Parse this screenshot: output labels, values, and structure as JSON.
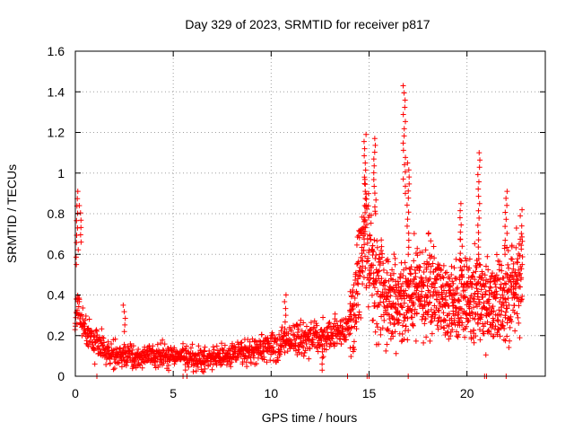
{
  "chart_data": {
    "type": "scatter",
    "title": "Day 329 of 2023, SRMTID for receiver p817",
    "xlabel": "GPS time / hours",
    "ylabel": "SRMTID / TECUs",
    "xlim": [
      0,
      24
    ],
    "ylim": [
      0,
      1.6
    ],
    "xticks": [
      0,
      5,
      10,
      15,
      20
    ],
    "yticks": [
      0,
      0.2,
      0.4,
      0.6,
      0.8,
      1,
      1.2,
      1.4,
      1.6
    ],
    "grid": true,
    "marker": "plus",
    "color": "#ff0000",
    "series": [
      {
        "name": "SRMTID",
        "trend": [
          [
            0.0,
            0.25
          ],
          [
            0.1,
            0.34
          ],
          [
            0.2,
            0.31
          ],
          [
            0.4,
            0.28
          ],
          [
            0.6,
            0.22
          ],
          [
            0.8,
            0.19
          ],
          [
            1.0,
            0.16
          ],
          [
            1.3,
            0.14
          ],
          [
            1.6,
            0.12
          ],
          [
            2.0,
            0.1
          ],
          [
            2.5,
            0.1
          ],
          [
            3.0,
            0.1
          ],
          [
            3.5,
            0.1
          ],
          [
            4.0,
            0.1
          ],
          [
            4.5,
            0.1
          ],
          [
            5.0,
            0.1
          ],
          [
            5.5,
            0.1
          ],
          [
            6.0,
            0.09
          ],
          [
            6.5,
            0.09
          ],
          [
            7.0,
            0.09
          ],
          [
            7.5,
            0.1
          ],
          [
            8.0,
            0.11
          ],
          [
            8.5,
            0.12
          ],
          [
            9.0,
            0.13
          ],
          [
            9.5,
            0.14
          ],
          [
            10.0,
            0.15
          ],
          [
            10.5,
            0.16
          ],
          [
            11.0,
            0.17
          ],
          [
            11.5,
            0.18
          ],
          [
            12.0,
            0.19
          ],
          [
            12.5,
            0.19
          ],
          [
            13.0,
            0.2
          ],
          [
            13.5,
            0.21
          ],
          [
            14.0,
            0.23
          ],
          [
            14.3,
            0.35
          ],
          [
            14.6,
            0.55
          ],
          [
            14.9,
            0.7
          ],
          [
            15.2,
            0.5
          ],
          [
            15.6,
            0.45
          ],
          [
            16.0,
            0.38
          ],
          [
            16.4,
            0.35
          ],
          [
            16.8,
            0.4
          ],
          [
            17.2,
            0.4
          ],
          [
            17.6,
            0.42
          ],
          [
            18.0,
            0.45
          ],
          [
            18.4,
            0.4
          ],
          [
            18.8,
            0.38
          ],
          [
            19.2,
            0.35
          ],
          [
            19.6,
            0.4
          ],
          [
            20.0,
            0.38
          ],
          [
            20.4,
            0.4
          ],
          [
            20.8,
            0.38
          ],
          [
            21.2,
            0.36
          ],
          [
            21.6,
            0.38
          ],
          [
            22.0,
            0.4
          ],
          [
            22.4,
            0.45
          ],
          [
            22.8,
            0.5
          ]
        ],
        "spikes": [
          {
            "x": 0.1,
            "from": 0.55,
            "to": 0.91
          },
          {
            "x": 0.25,
            "from": 0.66,
            "to": 0.84
          },
          {
            "x": 2.5,
            "from": 0.22,
            "to": 0.35
          },
          {
            "x": 10.7,
            "from": 0.2,
            "to": 0.4
          },
          {
            "x": 12.6,
            "from": 0.03,
            "to": 0.15
          },
          {
            "x": 14.8,
            "from": 0.7,
            "to": 1.19
          },
          {
            "x": 15.3,
            "from": 0.8,
            "to": 1.17
          },
          {
            "x": 16.8,
            "from": 0.9,
            "to": 1.43
          },
          {
            "x": 17.0,
            "from": 0.6,
            "to": 1.05
          },
          {
            "x": 19.7,
            "from": 0.5,
            "to": 0.85
          },
          {
            "x": 20.6,
            "from": 0.6,
            "to": 1.1
          },
          {
            "x": 22.0,
            "from": 0.6,
            "to": 0.91
          },
          {
            "x": 22.8,
            "from": 0.55,
            "to": 0.74
          }
        ],
        "zero_points": [
          1.1,
          5.5,
          5.7,
          13.9,
          14.9,
          15.0,
          17.0,
          20.9,
          21.0,
          22.0
        ]
      }
    ]
  }
}
